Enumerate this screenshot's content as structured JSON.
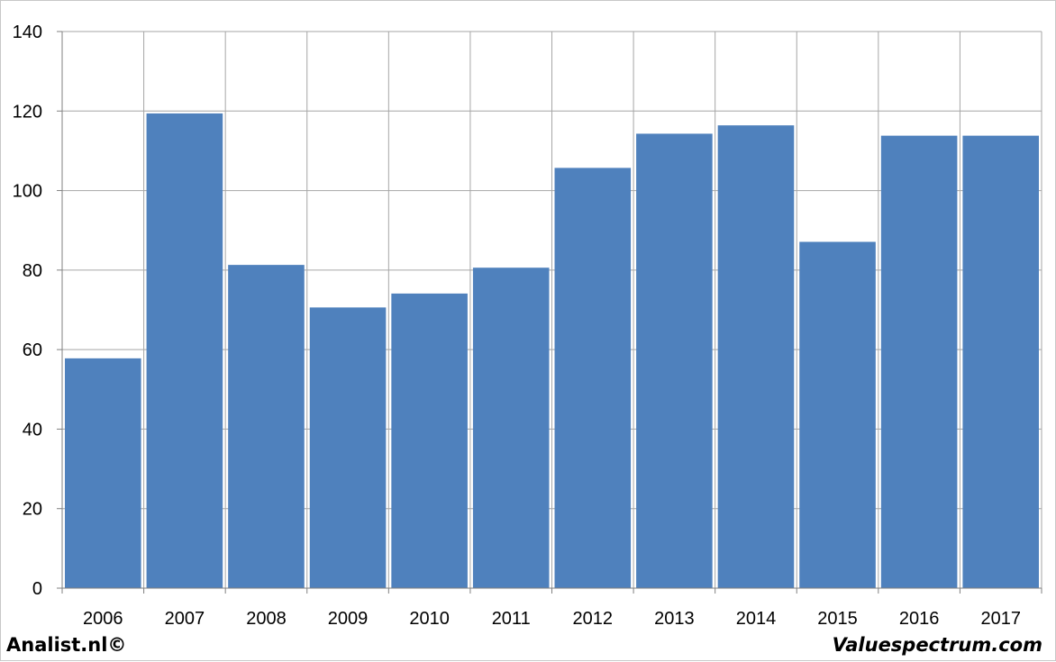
{
  "chart_data": {
    "type": "bar",
    "categories": [
      "2006",
      "2007",
      "2008",
      "2009",
      "2010",
      "2011",
      "2012",
      "2013",
      "2014",
      "2015",
      "2016",
      "2017"
    ],
    "values": [
      57.8,
      119.4,
      81.3,
      70.6,
      74.1,
      80.6,
      105.7,
      114.3,
      116.4,
      87.1,
      113.8,
      113.8
    ],
    "ylim": [
      0,
      140
    ],
    "yticks": [
      0,
      20,
      40,
      60,
      80,
      100,
      120,
      140
    ],
    "title": "",
    "xlabel": "",
    "ylabel": "",
    "grid": true,
    "bar_color": "#4f81bd",
    "grid_color": "#a6a6a6"
  },
  "footer": {
    "left_text": "Analist.nl©",
    "right_text": "Valuespectrum.com"
  }
}
